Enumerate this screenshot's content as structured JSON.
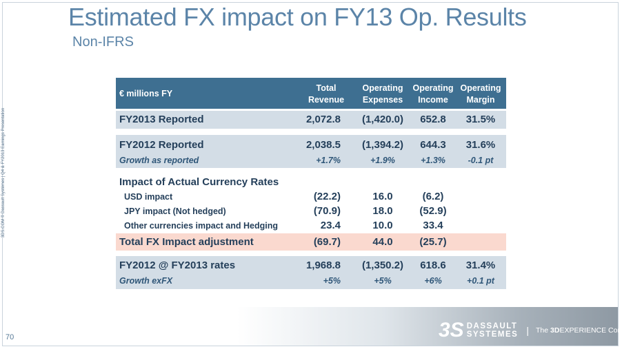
{
  "slide": {
    "title": "Estimated FX impact on FY13 Op. Results",
    "subtitle": "Non-IFRS",
    "side_text": "3DS.COM © Dassault Systèmes | Q4 & FY2013 Earnings Presentation",
    "page_number": "70"
  },
  "table": {
    "header": {
      "label": "€ millions FY",
      "col1": [
        "Total",
        "Revenue"
      ],
      "col2": [
        "Operating",
        "Expenses"
      ],
      "col3": [
        "Operating",
        "Income"
      ],
      "col4": [
        "Operating",
        "Margin"
      ]
    },
    "fy2013_reported": {
      "label": "FY2013 Reported",
      "revenue": "2,072.8",
      "expenses": "(1,420.0)",
      "income": "652.8",
      "margin": "31.5%"
    },
    "fy2012_reported": {
      "label": "FY2012 Reported",
      "revenue": "2,038.5",
      "expenses": "(1,394.2)",
      "income": "644.3",
      "margin": "31.6%"
    },
    "growth_reported": {
      "label": "Growth as reported",
      "revenue": "+1.7%",
      "expenses": "+1.9%",
      "income": "+1.3%",
      "margin": "-0.1 pt"
    },
    "impact_title": "Impact of Actual Currency Rates",
    "impacts": [
      {
        "label": "USD impact",
        "revenue": "(22.2)",
        "expenses": "16.0",
        "income": "(6.2)"
      },
      {
        "label": "JPY impact (Not hedged)",
        "revenue": "(70.9)",
        "expenses": "18.0",
        "income": "(52.9)"
      },
      {
        "label": "Other currencies impact and Hedging",
        "revenue": "23.4",
        "expenses": "10.0",
        "income": "33.4"
      }
    ],
    "total_fx": {
      "label": "Total FX Impact adjustment",
      "revenue": "(69.7)",
      "expenses": "44.0",
      "income": "(25.7)"
    },
    "fy2012_at_fy2013": {
      "label": "FY2012 @ FY2013 rates",
      "revenue": "1,968.8",
      "expenses": "(1,350.2)",
      "income": "618.6",
      "margin": "31.4%"
    },
    "growth_exfx": {
      "label": "Growth exFX",
      "revenue": "+5%",
      "expenses": "+5%",
      "income": "+6%",
      "margin": "+0.1 pt"
    }
  },
  "footer": {
    "logo_line1": "DASSAULT",
    "logo_line2": "SYSTEMES",
    "separator": "|",
    "tagline_prefix": "The",
    "tagline_bold": "3D",
    "tagline_rest": "EXPERIENCE Company"
  },
  "colors": {
    "title": "#5b84a8",
    "header_bg": "#3e6f91",
    "band_bg": "#d3dde6",
    "total_bg": "#fad9cf"
  }
}
